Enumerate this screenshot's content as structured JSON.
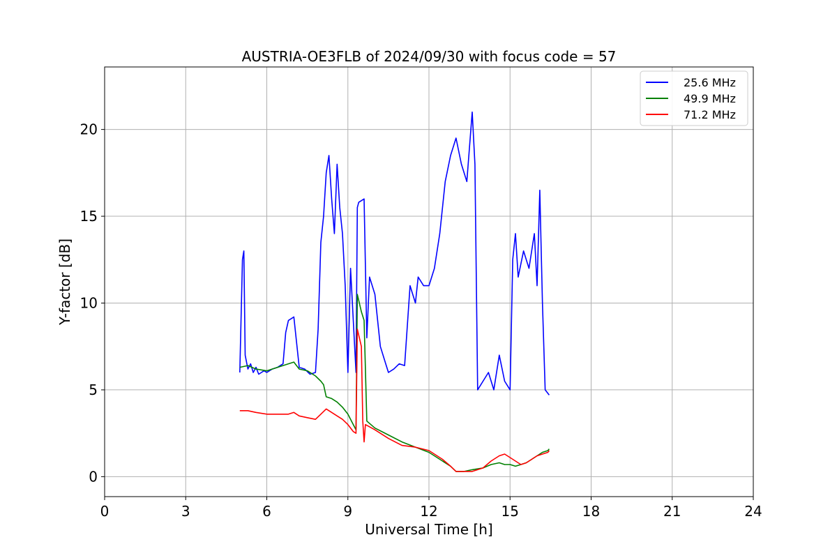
{
  "chart_data": {
    "type": "line",
    "title": "AUSTRIA-OE3FLB of 2024/09/30 with focus code = 57",
    "xlabel": "Universal Time [h]",
    "ylabel": "Y-factor [dB]",
    "xlim": [
      0,
      24
    ],
    "ylim": [
      -1.15,
      23.6
    ],
    "xticks": [
      0,
      3,
      6,
      9,
      12,
      15,
      18,
      21,
      24
    ],
    "yticks": [
      0,
      5,
      10,
      15,
      20
    ],
    "grid": true,
    "legend_position": "top-right",
    "series": [
      {
        "name": "25.6 MHz",
        "color": "#0000ff",
        "x": [
          5.0,
          5.1,
          5.15,
          5.2,
          5.3,
          5.4,
          5.5,
          5.6,
          5.7,
          5.8,
          5.9,
          6.0,
          6.2,
          6.4,
          6.6,
          6.7,
          6.8,
          7.0,
          7.2,
          7.4,
          7.6,
          7.8,
          7.9,
          8.0,
          8.1,
          8.2,
          8.3,
          8.4,
          8.5,
          8.6,
          8.7,
          8.8,
          8.9,
          9.0,
          9.1,
          9.2,
          9.3,
          9.35,
          9.4,
          9.6,
          9.7,
          9.8,
          10.0,
          10.2,
          10.4,
          10.5,
          10.7,
          10.9,
          11.1,
          11.3,
          11.5,
          11.6,
          11.8,
          12.0,
          12.2,
          12.4,
          12.6,
          12.8,
          13.0,
          13.2,
          13.4,
          13.6,
          13.7,
          13.8,
          14.0,
          14.2,
          14.4,
          14.6,
          14.8,
          15.0,
          15.1,
          15.2,
          15.3,
          15.5,
          15.7,
          15.9,
          16.0,
          16.1,
          16.2,
          16.3,
          16.45
        ],
        "values": [
          6.0,
          12.5,
          13.0,
          7.0,
          6.2,
          6.5,
          6.0,
          6.3,
          5.9,
          6.0,
          6.1,
          6.0,
          6.2,
          6.3,
          6.5,
          8.3,
          9.0,
          9.2,
          6.3,
          6.2,
          5.9,
          6.0,
          8.5,
          13.5,
          15.0,
          17.5,
          18.5,
          16.0,
          14.0,
          18.0,
          15.5,
          14.0,
          11.0,
          6.0,
          12.0,
          9.0,
          6.0,
          15.5,
          15.8,
          16.0,
          8.0,
          11.5,
          10.5,
          7.5,
          6.5,
          6.0,
          6.2,
          6.5,
          6.4,
          11.0,
          10.0,
          11.5,
          11.0,
          11.0,
          12.0,
          14.0,
          17.0,
          18.5,
          19.5,
          18.0,
          17.0,
          21.0,
          18.0,
          5.0,
          5.5,
          6.0,
          5.0,
          7.0,
          5.5,
          5.0,
          12.5,
          14.0,
          11.5,
          13.0,
          12.0,
          14.0,
          11.0,
          16.5,
          10.0,
          5.0,
          4.7
        ]
      },
      {
        "name": "49.9 MHz",
        "color": "#008000",
        "x": [
          5.0,
          5.3,
          5.6,
          6.0,
          6.4,
          6.8,
          7.0,
          7.2,
          7.5,
          7.8,
          8.0,
          8.1,
          8.2,
          8.4,
          8.6,
          8.8,
          9.0,
          9.2,
          9.3,
          9.35,
          9.5,
          9.6,
          9.7,
          10.0,
          10.5,
          11.0,
          11.5,
          12.0,
          12.5,
          12.8,
          13.0,
          13.3,
          13.6,
          14.0,
          14.3,
          14.6,
          14.8,
          15.0,
          15.2,
          15.4,
          15.6,
          15.8,
          16.0,
          16.2,
          16.4,
          16.45
        ],
        "values": [
          6.3,
          6.4,
          6.2,
          6.1,
          6.3,
          6.5,
          6.6,
          6.2,
          6.1,
          5.8,
          5.5,
          5.3,
          4.6,
          4.5,
          4.3,
          4.0,
          3.6,
          3.0,
          2.7,
          10.5,
          9.5,
          9.0,
          3.2,
          2.8,
          2.4,
          2.0,
          1.7,
          1.4,
          0.9,
          0.6,
          0.3,
          0.3,
          0.4,
          0.5,
          0.7,
          0.8,
          0.7,
          0.7,
          0.6,
          0.7,
          0.8,
          1.0,
          1.2,
          1.4,
          1.5,
          1.6
        ]
      },
      {
        "name": "71.2 MHz",
        "color": "#ff0000",
        "x": [
          5.0,
          5.3,
          5.6,
          6.0,
          6.4,
          6.8,
          7.0,
          7.2,
          7.5,
          7.8,
          8.0,
          8.2,
          8.4,
          8.6,
          8.8,
          9.0,
          9.2,
          9.3,
          9.35,
          9.5,
          9.55,
          9.6,
          9.65,
          10.0,
          10.5,
          11.0,
          11.5,
          12.0,
          12.5,
          12.8,
          13.0,
          13.3,
          13.6,
          14.0,
          14.3,
          14.6,
          14.8,
          15.0,
          15.2,
          15.4,
          15.6,
          15.8,
          16.0,
          16.2,
          16.4,
          16.45
        ],
        "values": [
          3.8,
          3.8,
          3.7,
          3.6,
          3.6,
          3.6,
          3.7,
          3.5,
          3.4,
          3.3,
          3.6,
          3.9,
          3.7,
          3.5,
          3.3,
          3.0,
          2.6,
          2.5,
          8.5,
          7.5,
          3.2,
          2.0,
          3.0,
          2.7,
          2.2,
          1.8,
          1.7,
          1.5,
          1.0,
          0.6,
          0.3,
          0.3,
          0.3,
          0.5,
          0.9,
          1.2,
          1.3,
          1.1,
          0.9,
          0.7,
          0.8,
          1.0,
          1.2,
          1.3,
          1.4,
          1.5
        ]
      }
    ]
  }
}
